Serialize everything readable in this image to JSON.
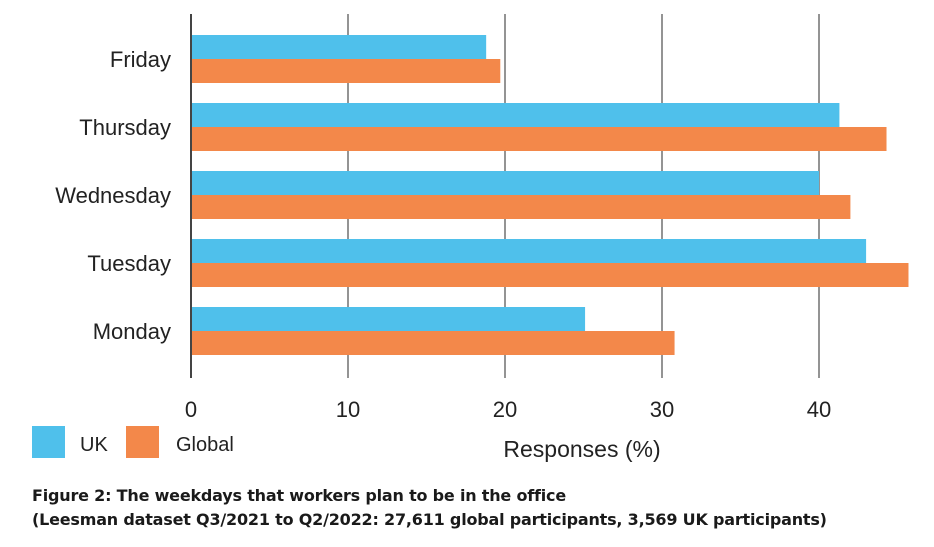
{
  "chart_data": {
    "type": "bar",
    "orientation": "horizontal",
    "categories": [
      "Friday",
      "Thursday",
      "Wednesday",
      "Tuesday",
      "Monday"
    ],
    "series": [
      {
        "name": "UK",
        "color": "#4fc0eb",
        "values": [
          18.8,
          41.3,
          40.0,
          43.0,
          25.1
        ]
      },
      {
        "name": "Global",
        "color": "#f3884a",
        "values": [
          19.7,
          44.3,
          42.0,
          45.7,
          30.8
        ]
      }
    ],
    "xlabel": "Responses (%)",
    "ylabel": "",
    "xlim": [
      0,
      46
    ],
    "xticks": [
      0,
      10,
      20,
      30,
      40
    ],
    "grid": true,
    "legend": "bottom-left"
  },
  "caption": {
    "line1": "Figure 2: The weekdays that workers plan to be in the office",
    "line2": "(Leesman dataset Q3/2021 to Q2/2022: 27,611 global participants, 3,569 UK participants)"
  }
}
